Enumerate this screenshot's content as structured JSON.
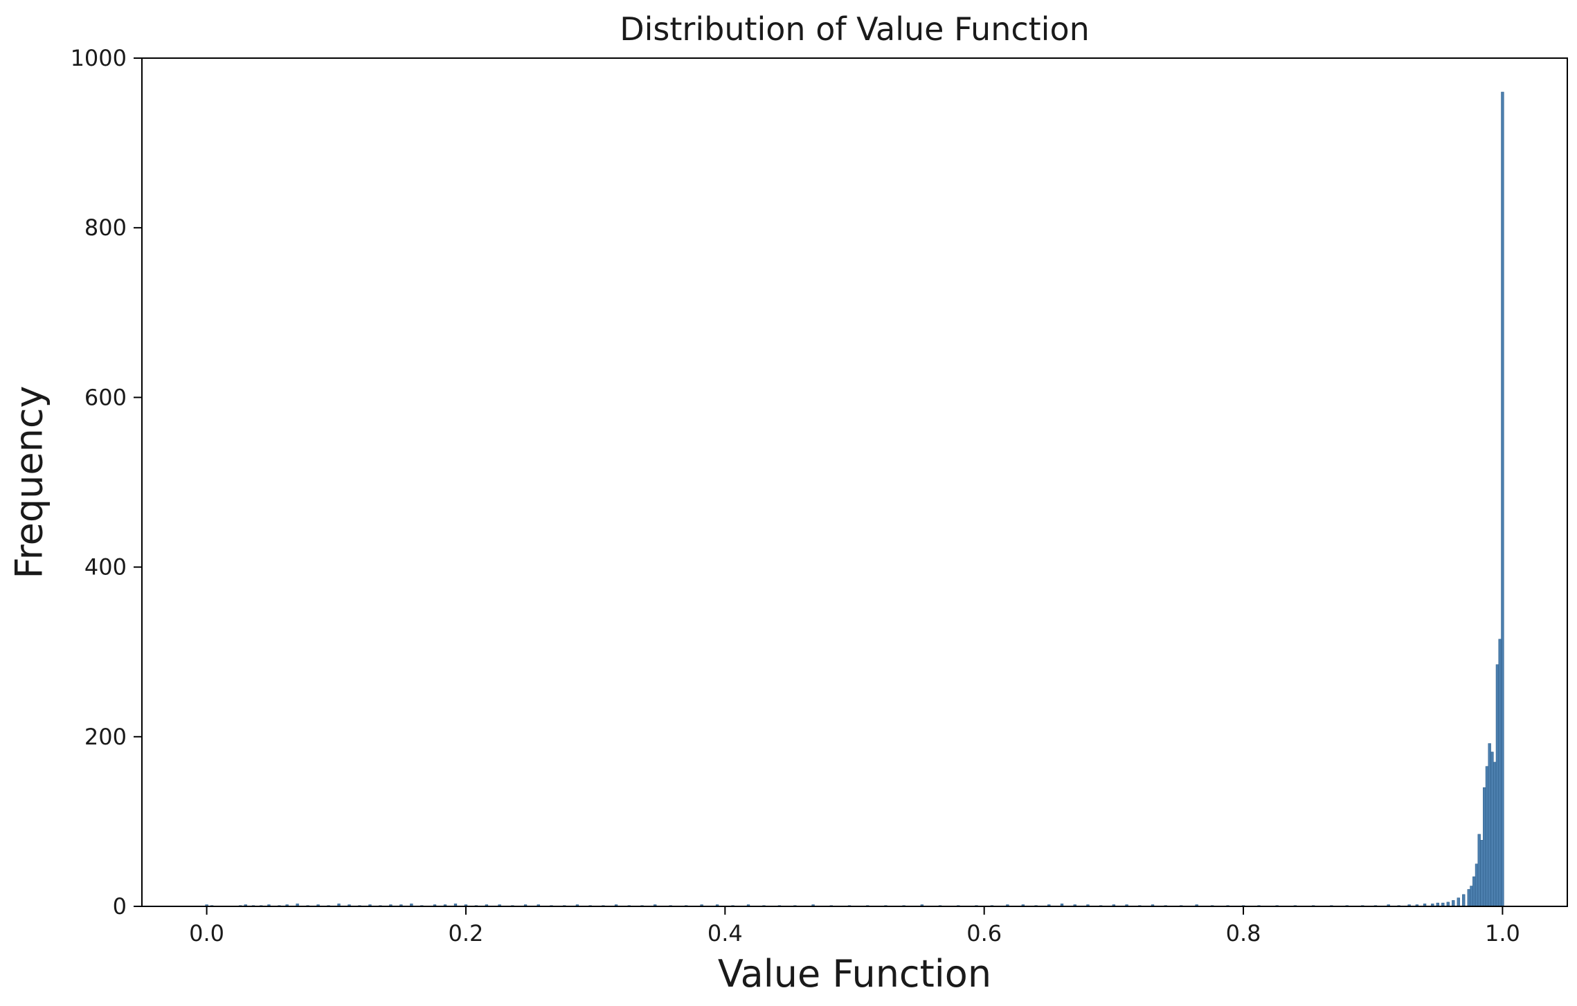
{
  "chart_data": {
    "type": "bar",
    "title": "Distribution of Value Function",
    "xlabel": "Value Function",
    "ylabel": "Frequency",
    "xlim": [
      -0.05,
      1.05
    ],
    "ylim": [
      0,
      1000
    ],
    "xticks": [
      0.0,
      0.2,
      0.4,
      0.6,
      0.8,
      1.0
    ],
    "xtick_labels": [
      "0.0",
      "0.2",
      "0.4",
      "0.6",
      "0.8",
      "1.0"
    ],
    "yticks": [
      0,
      200,
      400,
      600,
      800,
      1000
    ],
    "ytick_labels": [
      "0",
      "200",
      "400",
      "600",
      "800",
      "1000"
    ],
    "grid": false,
    "colors": {
      "bar_fill": "#4c7fae",
      "bar_edge": "#2f5f8c",
      "axis": "#000000"
    },
    "bin_width": 0.002,
    "bins": [
      {
        "x": 0.0,
        "count": 2
      },
      {
        "x": 0.004,
        "count": 1
      },
      {
        "x": 0.026,
        "count": 1
      },
      {
        "x": 0.03,
        "count": 2
      },
      {
        "x": 0.036,
        "count": 1
      },
      {
        "x": 0.042,
        "count": 1
      },
      {
        "x": 0.048,
        "count": 2
      },
      {
        "x": 0.056,
        "count": 1
      },
      {
        "x": 0.062,
        "count": 2
      },
      {
        "x": 0.07,
        "count": 3
      },
      {
        "x": 0.078,
        "count": 1
      },
      {
        "x": 0.086,
        "count": 2
      },
      {
        "x": 0.094,
        "count": 1
      },
      {
        "x": 0.102,
        "count": 3
      },
      {
        "x": 0.11,
        "count": 2
      },
      {
        "x": 0.118,
        "count": 1
      },
      {
        "x": 0.126,
        "count": 2
      },
      {
        "x": 0.134,
        "count": 1
      },
      {
        "x": 0.142,
        "count": 2
      },
      {
        "x": 0.15,
        "count": 2
      },
      {
        "x": 0.158,
        "count": 3
      },
      {
        "x": 0.166,
        "count": 1
      },
      {
        "x": 0.176,
        "count": 2
      },
      {
        "x": 0.184,
        "count": 2
      },
      {
        "x": 0.192,
        "count": 3
      },
      {
        "x": 0.2,
        "count": 2
      },
      {
        "x": 0.208,
        "count": 1
      },
      {
        "x": 0.216,
        "count": 2
      },
      {
        "x": 0.226,
        "count": 2
      },
      {
        "x": 0.236,
        "count": 1
      },
      {
        "x": 0.246,
        "count": 2
      },
      {
        "x": 0.256,
        "count": 2
      },
      {
        "x": 0.266,
        "count": 1
      },
      {
        "x": 0.276,
        "count": 1
      },
      {
        "x": 0.286,
        "count": 2
      },
      {
        "x": 0.296,
        "count": 1
      },
      {
        "x": 0.306,
        "count": 1
      },
      {
        "x": 0.316,
        "count": 2
      },
      {
        "x": 0.326,
        "count": 1
      },
      {
        "x": 0.336,
        "count": 1
      },
      {
        "x": 0.346,
        "count": 2
      },
      {
        "x": 0.358,
        "count": 1
      },
      {
        "x": 0.37,
        "count": 1
      },
      {
        "x": 0.382,
        "count": 2
      },
      {
        "x": 0.394,
        "count": 2
      },
      {
        "x": 0.406,
        "count": 1
      },
      {
        "x": 0.418,
        "count": 2
      },
      {
        "x": 0.43,
        "count": 1
      },
      {
        "x": 0.442,
        "count": 1
      },
      {
        "x": 0.454,
        "count": 1
      },
      {
        "x": 0.468,
        "count": 2
      },
      {
        "x": 0.482,
        "count": 1
      },
      {
        "x": 0.496,
        "count": 1
      },
      {
        "x": 0.51,
        "count": 1
      },
      {
        "x": 0.524,
        "count": 1
      },
      {
        "x": 0.538,
        "count": 1
      },
      {
        "x": 0.552,
        "count": 2
      },
      {
        "x": 0.566,
        "count": 1
      },
      {
        "x": 0.58,
        "count": 1
      },
      {
        "x": 0.594,
        "count": 1
      },
      {
        "x": 0.606,
        "count": 1
      },
      {
        "x": 0.618,
        "count": 2
      },
      {
        "x": 0.63,
        "count": 2
      },
      {
        "x": 0.64,
        "count": 1
      },
      {
        "x": 0.65,
        "count": 2
      },
      {
        "x": 0.66,
        "count": 3
      },
      {
        "x": 0.67,
        "count": 2
      },
      {
        "x": 0.68,
        "count": 2
      },
      {
        "x": 0.69,
        "count": 1
      },
      {
        "x": 0.7,
        "count": 2
      },
      {
        "x": 0.71,
        "count": 2
      },
      {
        "x": 0.72,
        "count": 1
      },
      {
        "x": 0.73,
        "count": 2
      },
      {
        "x": 0.74,
        "count": 1
      },
      {
        "x": 0.752,
        "count": 1
      },
      {
        "x": 0.764,
        "count": 2
      },
      {
        "x": 0.776,
        "count": 1
      },
      {
        "x": 0.788,
        "count": 1
      },
      {
        "x": 0.8,
        "count": 1
      },
      {
        "x": 0.812,
        "count": 1
      },
      {
        "x": 0.826,
        "count": 1
      },
      {
        "x": 0.84,
        "count": 1
      },
      {
        "x": 0.854,
        "count": 1
      },
      {
        "x": 0.868,
        "count": 1
      },
      {
        "x": 0.88,
        "count": 1
      },
      {
        "x": 0.892,
        "count": 1
      },
      {
        "x": 0.902,
        "count": 1
      },
      {
        "x": 0.912,
        "count": 2
      },
      {
        "x": 0.92,
        "count": 1
      },
      {
        "x": 0.928,
        "count": 2
      },
      {
        "x": 0.934,
        "count": 2
      },
      {
        "x": 0.94,
        "count": 3
      },
      {
        "x": 0.946,
        "count": 3
      },
      {
        "x": 0.95,
        "count": 4
      },
      {
        "x": 0.954,
        "count": 4
      },
      {
        "x": 0.958,
        "count": 5
      },
      {
        "x": 0.962,
        "count": 7
      },
      {
        "x": 0.966,
        "count": 10
      },
      {
        "x": 0.97,
        "count": 14
      },
      {
        "x": 0.974,
        "count": 20
      },
      {
        "x": 0.976,
        "count": 24
      },
      {
        "x": 0.978,
        "count": 35
      },
      {
        "x": 0.98,
        "count": 50
      },
      {
        "x": 0.982,
        "count": 85
      },
      {
        "x": 0.984,
        "count": 78
      },
      {
        "x": 0.986,
        "count": 140
      },
      {
        "x": 0.988,
        "count": 165
      },
      {
        "x": 0.99,
        "count": 192
      },
      {
        "x": 0.992,
        "count": 182
      },
      {
        "x": 0.994,
        "count": 170
      },
      {
        "x": 0.996,
        "count": 285
      },
      {
        "x": 0.998,
        "count": 315
      },
      {
        "x": 1.0,
        "count": 960
      }
    ]
  }
}
